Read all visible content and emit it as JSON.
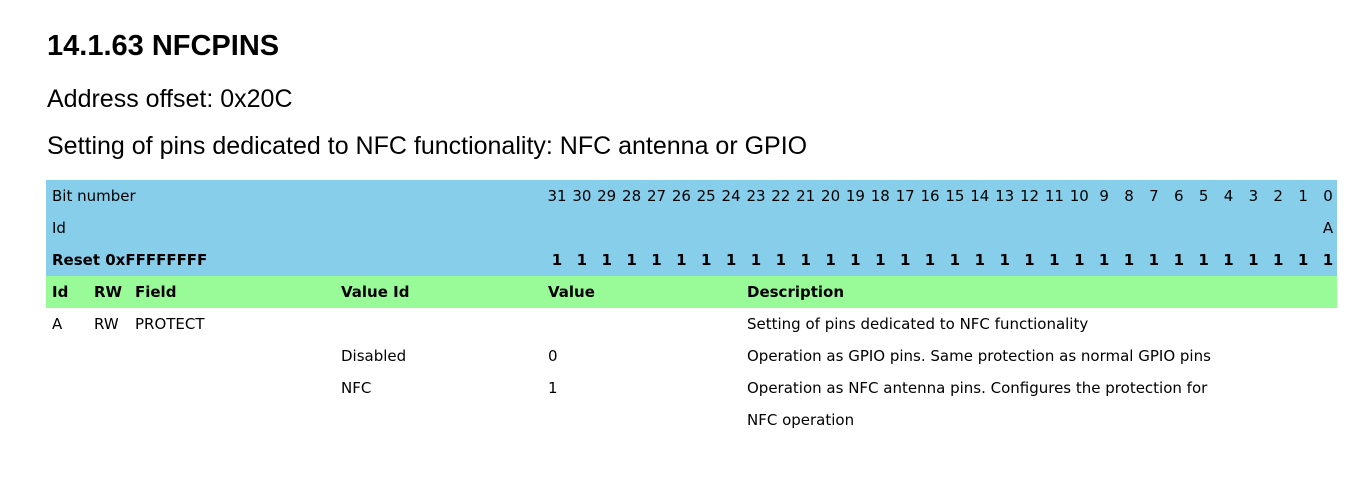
{
  "title": "14.1.63 NFCPINS",
  "address_offset": "Address offset: 0x20C",
  "description": "Setting of pins dedicated to NFC functionality: NFC antenna or GPIO",
  "register": {
    "bit_number_label": "Bit number",
    "id_label": "Id",
    "reset_label": "Reset 0xFFFFFFFF",
    "bits": [
      "31",
      "30",
      "29",
      "28",
      "27",
      "26",
      "25",
      "24",
      "23",
      "22",
      "21",
      "20",
      "19",
      "18",
      "17",
      "16",
      "15",
      "14",
      "13",
      "12",
      "11",
      "10",
      "9",
      "8",
      "7",
      "6",
      "5",
      "4",
      "3",
      "2",
      "1",
      "0"
    ],
    "ids": [
      "",
      "",
      "",
      "",
      "",
      "",
      "",
      "",
      "",
      "",
      "",
      "",
      "",
      "",
      "",
      "",
      "",
      "",
      "",
      "",
      "",
      "",
      "",
      "",
      "",
      "",
      "",
      "",
      "",
      "",
      "",
      "A"
    ],
    "reset_values": [
      "1",
      "1",
      "1",
      "1",
      "1",
      "1",
      "1",
      "1",
      "1",
      "1",
      "1",
      "1",
      "1",
      "1",
      "1",
      "1",
      "1",
      "1",
      "1",
      "1",
      "1",
      "1",
      "1",
      "1",
      "1",
      "1",
      "1",
      "1",
      "1",
      "1",
      "1",
      "1"
    ]
  },
  "field_header": {
    "id": "Id",
    "rw": "RW",
    "field": "Field",
    "value_id": "Value Id",
    "value": "Value",
    "description": "Description"
  },
  "fields": [
    {
      "id": "A",
      "rw": "RW",
      "field": "PROTECT",
      "value_id": "",
      "value": "",
      "description": "Setting of pins dedicated to NFC functionality"
    },
    {
      "id": "",
      "rw": "",
      "field": "",
      "value_id": "Disabled",
      "value": "0",
      "description": "Operation as GPIO pins. Same protection as normal GPIO pins"
    },
    {
      "id": "",
      "rw": "",
      "field": "",
      "value_id": "NFC",
      "value": "1",
      "description": "Operation as NFC antenna pins. Configures the protection for"
    },
    {
      "id": "",
      "rw": "",
      "field": "",
      "value_id": "",
      "value": "",
      "description": "NFC operation"
    }
  ]
}
